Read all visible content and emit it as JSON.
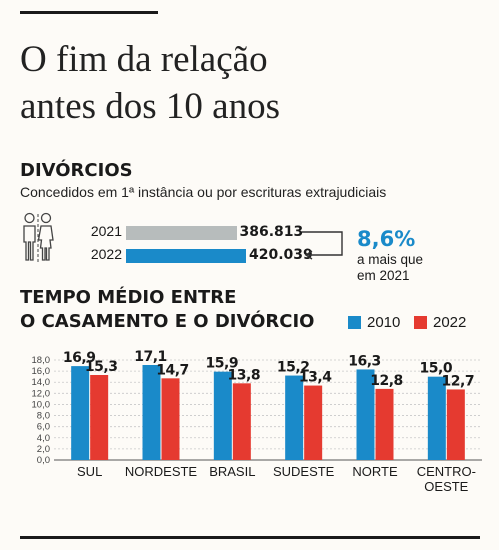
{
  "headline": [
    "O fim da relação",
    "antes dos 10 anos"
  ],
  "divorces": {
    "title": "DIVÓRCIOS",
    "subtitle": "Concedidos em 1ª instância ou por escrituras extrajudiciais",
    "rows": [
      {
        "year": "2021",
        "value": 386813,
        "label": "386.813",
        "color": "#b7bcbc"
      },
      {
        "year": "2022",
        "value": 420039,
        "label": "420.039",
        "color": "#1a8ac9"
      }
    ],
    "change": "8,6%",
    "change_caption": [
      "a mais que",
      "em 2021"
    ]
  },
  "colors": {
    "accent": "#1a8ac9",
    "red": "#e53a30",
    "grey": "#b7bcbc"
  },
  "chart_data": {
    "type": "bar",
    "title": [
      "TEMPO MÉDIO ENTRE",
      "O CASAMENTO E O DIVÓRCIO"
    ],
    "categories": [
      [
        "SUL"
      ],
      [
        "NORDESTE"
      ],
      [
        "BRASIL"
      ],
      [
        "SUDESTE"
      ],
      [
        "NORTE"
      ],
      [
        "CENTRO-",
        "OESTE"
      ]
    ],
    "series": [
      {
        "name": "2010",
        "color": "#1a8ac9",
        "values": [
          16.9,
          17.1,
          15.9,
          15.2,
          16.3,
          15.0
        ],
        "labels": [
          "16,9",
          "17,1",
          "15,9",
          "15,2",
          "16,3",
          "15,0"
        ]
      },
      {
        "name": "2022",
        "color": "#e53a30",
        "values": [
          15.3,
          14.7,
          13.8,
          13.4,
          12.8,
          12.7
        ],
        "labels": [
          "15,3",
          "14,7",
          "13,8",
          "13,4",
          "12,8",
          "12,7"
        ]
      }
    ],
    "ylim": [
      0,
      18
    ],
    "yticks": [
      "0,0",
      "2,0",
      "4,0",
      "6,0",
      "8,0",
      "10,0",
      "12,0",
      "14,0",
      "16,0",
      "18,0"
    ],
    "grid": true,
    "legend": "top-right"
  }
}
